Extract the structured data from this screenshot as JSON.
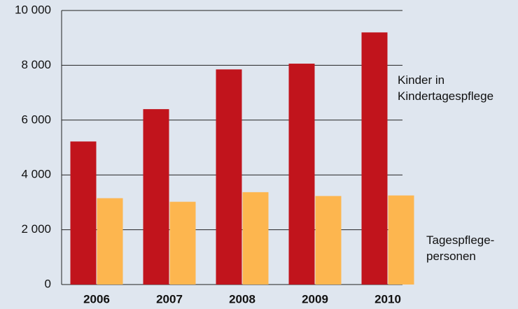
{
  "chart_data": {
    "type": "bar",
    "categories": [
      "2006",
      "2007",
      "2008",
      "2009",
      "2010"
    ],
    "series": [
      {
        "name": "Kinder in\nKindertagespflege",
        "color": "#c1141c",
        "values": [
          5220,
          6400,
          7850,
          8060,
          9200
        ]
      },
      {
        "name": "Tagespflege-\npersonen",
        "color": "#fdb64f",
        "values": [
          3150,
          3020,
          3370,
          3230,
          3250
        ]
      }
    ],
    "ylim": [
      0,
      10000
    ],
    "yticks": [
      0,
      {
        "value": 2000,
        "label": "2 000"
      },
      {
        "value": 4000,
        "label": "4 000"
      },
      {
        "value": 6000,
        "label": "6 000"
      },
      {
        "value": 8000,
        "label": "8 000"
      },
      {
        "value": 10000,
        "label": "10 000"
      }
    ],
    "grid": true
  }
}
